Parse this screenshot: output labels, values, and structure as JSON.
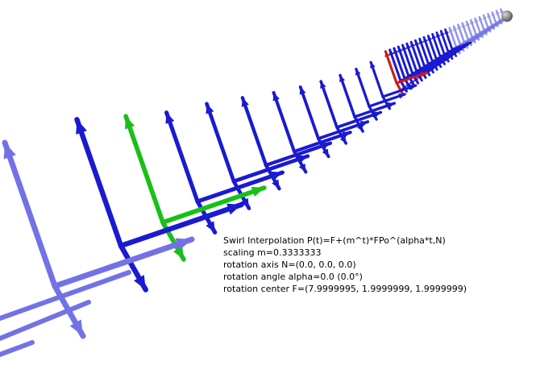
{
  "info": {
    "title": "Swirl Interpolation P(t)=F+(m^t)*FPo^(alpha*t,N)",
    "scaling": "scaling m=0.3333333",
    "axis": "rotation axis N=(0.0, 0.0, 0.0)",
    "angle": "rotation angle alpha=0.0 (0.0°)",
    "center": "rotation center F=(7.9999995, 1.9999999, 1.9999999)"
  },
  "colors": {
    "frame_default": "#1a1ad0",
    "frame_light": "#7272e6",
    "frame_highlight_green": "#18c018",
    "frame_highlight_red": "#d01818",
    "endpoint_sphere": "#707070",
    "background": "#ffffff"
  },
  "scene_content": {
    "frame_count": 40,
    "green_frame_index": 2,
    "red_frame_index": 12,
    "endpoint_marker": "sphere"
  }
}
